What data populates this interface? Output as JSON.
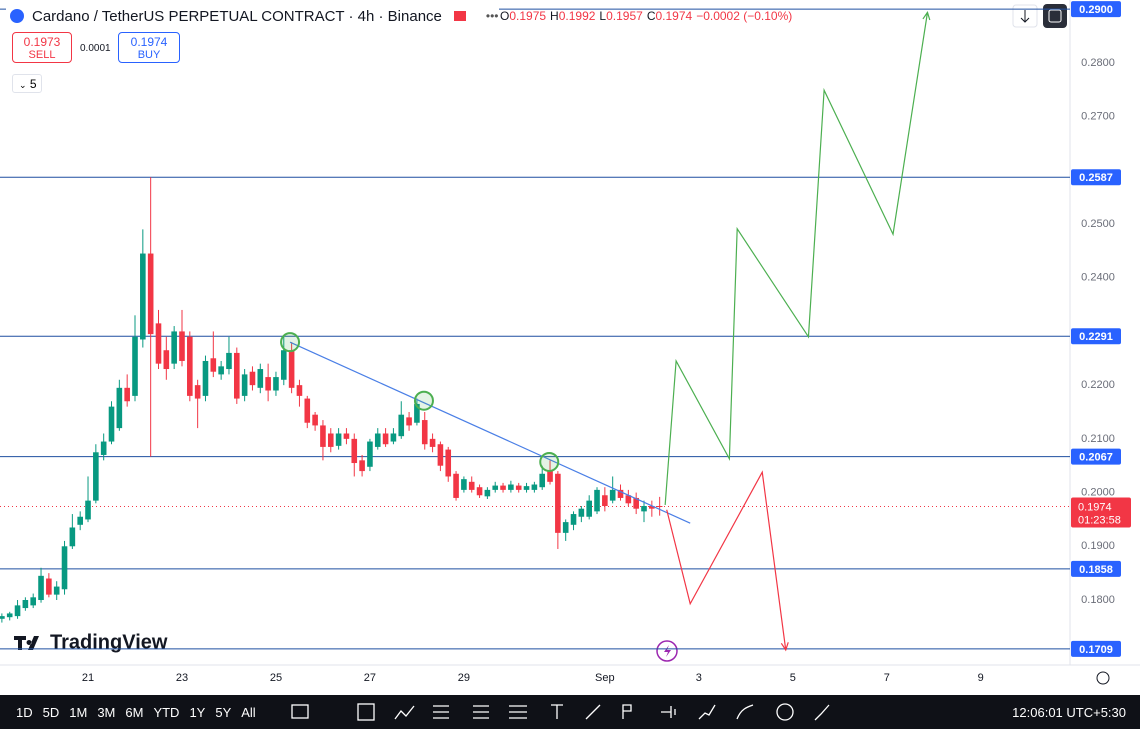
{
  "header": {
    "symbol": "Cardano / TetherUS PERPETUAL CONTRACT · 4h · Binance",
    "ohlc": [
      {
        "label": "O",
        "value": "0.1975"
      },
      {
        "label": "H",
        "value": "0.1992"
      },
      {
        "label": "L",
        "value": "0.1957"
      },
      {
        "label": "C",
        "value": "0.1974"
      }
    ],
    "change": "−0.0002 (−0.10%)"
  },
  "trade": {
    "sell_price": "0.1973",
    "sell_label": "SELL",
    "spread": "0.0001",
    "buy_price": "0.1974",
    "buy_label": "BUY"
  },
  "indicators_count": "5",
  "logo": "TradingView",
  "toolbar": {
    "timeframes": [
      "1D",
      "5D",
      "1M",
      "3M",
      "6M",
      "YTD",
      "1Y",
      "5Y",
      "All"
    ],
    "clock": "12:06:01 UTC+5:30"
  },
  "chart_data": {
    "type": "candlestick",
    "up_color": "#089981",
    "down_color": "#f23645",
    "open": [
      0.1765,
      0.1768,
      0.177,
      0.1785,
      0.179,
      0.18,
      0.184,
      0.181,
      0.182,
      0.19,
      0.194,
      0.195,
      0.1985,
      0.207,
      0.2095,
      0.212,
      0.2195,
      0.218,
      0.2285,
      0.2445,
      0.2315,
      0.2265,
      0.224,
      0.23,
      0.229,
      0.22,
      0.218,
      0.225,
      0.222,
      0.223,
      0.226,
      0.218,
      0.2225,
      0.2195,
      0.2215,
      0.219,
      0.221,
      0.2265,
      0.22,
      0.2175,
      0.2145,
      0.2125,
      0.211,
      0.2087,
      0.211,
      0.21,
      0.206,
      0.2048,
      0.2085,
      0.211,
      0.2095,
      0.2105,
      0.214,
      0.213,
      0.2135,
      0.21,
      0.209,
      0.208,
      0.2035,
      0.2005,
      0.202,
      0.201,
      0.1993,
      0.2005,
      0.2013,
      0.2005,
      0.2013,
      0.2005,
      0.2005,
      0.201,
      0.204,
      0.2035,
      0.1925,
      0.194,
      0.1955,
      0.1955,
      0.1965,
      0.1995,
      0.1985,
      0.2005,
      0.1995,
      0.199,
      0.1965,
      0.1975,
      0.1975
    ],
    "high": [
      0.1775,
      0.1778,
      0.18,
      0.1805,
      0.1812,
      0.186,
      0.185,
      0.1835,
      0.191,
      0.196,
      0.1965,
      0.203,
      0.209,
      0.211,
      0.217,
      0.221,
      0.222,
      0.233,
      0.249,
      0.2587,
      0.234,
      0.229,
      0.231,
      0.234,
      0.23,
      0.221,
      0.2255,
      0.23,
      0.2245,
      0.229,
      0.227,
      0.223,
      0.2235,
      0.224,
      0.224,
      0.2225,
      0.229,
      0.228,
      0.221,
      0.218,
      0.215,
      0.2135,
      0.212,
      0.212,
      0.212,
      0.211,
      0.207,
      0.21,
      0.212,
      0.212,
      0.212,
      0.217,
      0.215,
      0.2175,
      0.215,
      0.211,
      0.2095,
      0.2085,
      0.204,
      0.203,
      0.203,
      0.2015,
      0.201,
      0.202,
      0.2018,
      0.2022,
      0.2018,
      0.2018,
      0.202,
      0.205,
      0.206,
      0.204,
      0.195,
      0.1965,
      0.1975,
      0.1995,
      0.201,
      0.201,
      0.203,
      0.2015,
      0.2005,
      0.2,
      0.1985,
      0.1985,
      0.1992
    ],
    "low": [
      0.1758,
      0.1762,
      0.1765,
      0.178,
      0.1785,
      0.1795,
      0.1805,
      0.18,
      0.181,
      0.1895,
      0.193,
      0.1945,
      0.198,
      0.206,
      0.209,
      0.2115,
      0.216,
      0.217,
      0.227,
      0.2067,
      0.223,
      0.221,
      0.223,
      0.2235,
      0.217,
      0.212,
      0.217,
      0.2215,
      0.221,
      0.222,
      0.2165,
      0.217,
      0.219,
      0.2185,
      0.217,
      0.218,
      0.22,
      0.2185,
      0.216,
      0.212,
      0.2115,
      0.206,
      0.2075,
      0.208,
      0.209,
      0.203,
      0.203,
      0.204,
      0.208,
      0.2085,
      0.209,
      0.21,
      0.2115,
      0.2125,
      0.208,
      0.2075,
      0.204,
      0.202,
      0.1985,
      0.2,
      0.2,
      0.199,
      0.1988,
      0.2,
      0.2,
      0.2,
      0.2,
      0.2,
      0.2,
      0.2005,
      0.2015,
      0.1895,
      0.191,
      0.193,
      0.1945,
      0.195,
      0.196,
      0.1965,
      0.198,
      0.1985,
      0.1975,
      0.196,
      0.1945,
      0.1955,
      0.1957
    ],
    "close": [
      0.177,
      0.1775,
      0.179,
      0.18,
      0.1805,
      0.1845,
      0.181,
      0.1825,
      0.19,
      0.1935,
      0.1955,
      0.1985,
      0.2075,
      0.2095,
      0.216,
      0.2195,
      0.217,
      0.229,
      0.2445,
      0.2295,
      0.224,
      0.223,
      0.23,
      0.2245,
      0.218,
      0.2175,
      0.2245,
      0.2225,
      0.2235,
      0.226,
      0.2175,
      0.222,
      0.22,
      0.223,
      0.219,
      0.2215,
      0.2265,
      0.2195,
      0.218,
      0.213,
      0.2125,
      0.2085,
      0.2085,
      0.211,
      0.21,
      0.2055,
      0.204,
      0.2095,
      0.211,
      0.209,
      0.211,
      0.2145,
      0.2125,
      0.2165,
      0.209,
      0.2085,
      0.205,
      0.203,
      0.199,
      0.2025,
      0.2005,
      0.1995,
      0.2005,
      0.2013,
      0.2005,
      0.2015,
      0.2005,
      0.2012,
      0.2015,
      0.2035,
      0.202,
      0.1925,
      0.1945,
      0.196,
      0.197,
      0.1985,
      0.2005,
      0.1975,
      0.2005,
      0.199,
      0.198,
      0.197,
      0.1975,
      0.197,
      0.1974
    ],
    "xlim": [
      -0.24,
      136.4
    ],
    "xticks": [
      {
        "value": 11,
        "label": "21"
      },
      {
        "value": 23,
        "label": "23"
      },
      {
        "value": 35,
        "label": "25"
      },
      {
        "value": 47,
        "label": "27"
      },
      {
        "value": 59,
        "label": "29"
      },
      {
        "value": 77,
        "label": "Sep"
      },
      {
        "value": 89,
        "label": "3"
      },
      {
        "value": 101,
        "label": "5"
      },
      {
        "value": 113,
        "label": "7"
      },
      {
        "value": 125,
        "label": "9"
      }
    ],
    "ylim": [
      0.1679,
      0.2917
    ],
    "yticks": [
      {
        "value": 0.18,
        "label": "0.1800"
      },
      {
        "value": 0.19,
        "label": "0.1900"
      },
      {
        "value": 0.2,
        "label": "0.2000"
      },
      {
        "value": 0.21,
        "label": "0.2100"
      },
      {
        "value": 0.22,
        "label": "0.2200"
      },
      {
        "value": 0.24,
        "label": "0.2400"
      },
      {
        "value": 0.25,
        "label": "0.2500"
      },
      {
        "value": 0.27,
        "label": "0.2700"
      },
      {
        "value": 0.28,
        "label": "0.2800"
      }
    ],
    "levels": [
      {
        "value": 0.29,
        "label": "0.2900"
      },
      {
        "value": 0.2587,
        "label": "0.2587"
      },
      {
        "value": 0.2291,
        "label": "0.2291"
      },
      {
        "value": 0.2067,
        "label": "0.2067"
      },
      {
        "value": 0.1858,
        "label": "0.1858"
      },
      {
        "value": 0.1709,
        "label": "0.1709"
      }
    ],
    "level_color": "#1f4fa0",
    "last_price": {
      "value": 0.1974,
      "label": "0.1974",
      "countdown": "01:23:58"
    },
    "lines": [
      {
        "color": "#4a7fe6",
        "arrow": false,
        "x": [
          36.8,
          87.9
        ],
        "y": [
          0.228,
          0.1943
        ]
      },
      {
        "color": "#4caf50",
        "arrow": true,
        "x": [
          84.7,
          86.1,
          92.9,
          93.9,
          103.0,
          105.0,
          113.8,
          118.2
        ],
        "y": [
          0.1977,
          0.2245,
          0.2063,
          0.2491,
          0.229,
          0.2749,
          0.2481,
          0.2894
        ]
      },
      {
        "color": "#f23645",
        "arrow": true,
        "x": [
          84.9,
          87.9,
          97.1,
          100.1
        ],
        "y": [
          0.1968,
          0.1793,
          0.2038,
          0.1707
        ]
      }
    ],
    "markers": {
      "color": "#4caf50",
      "x": [
        36.8,
        53.9,
        69.9
      ],
      "y": [
        0.228,
        0.2171,
        0.2057
      ]
    }
  }
}
